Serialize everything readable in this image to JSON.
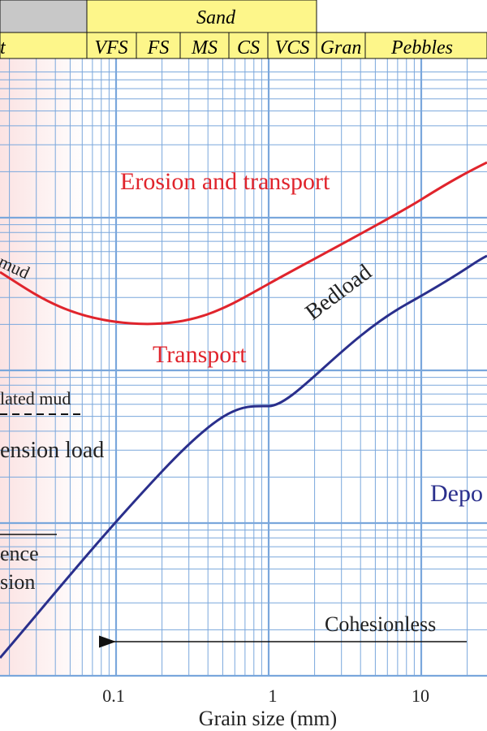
{
  "header": {
    "group": "Sand",
    "classes": [
      "t",
      "VFS",
      "FS",
      "MS",
      "CS",
      "VCS",
      "Gran",
      "Pebbles"
    ]
  },
  "labels": {
    "erosion": "Erosion and transport",
    "mud": "mud",
    "transport": "Transport",
    "bedload": "Bedload",
    "consolidated": "lated mud",
    "suspension": "ension load",
    "difference1": "ence",
    "difference2": "sion",
    "deposition": "Depo",
    "cohesionless": "Cohesionless"
  },
  "x_axis": {
    "title": "Grain size (mm)",
    "ticks": [
      "0.1",
      "1",
      "10"
    ]
  }
}
